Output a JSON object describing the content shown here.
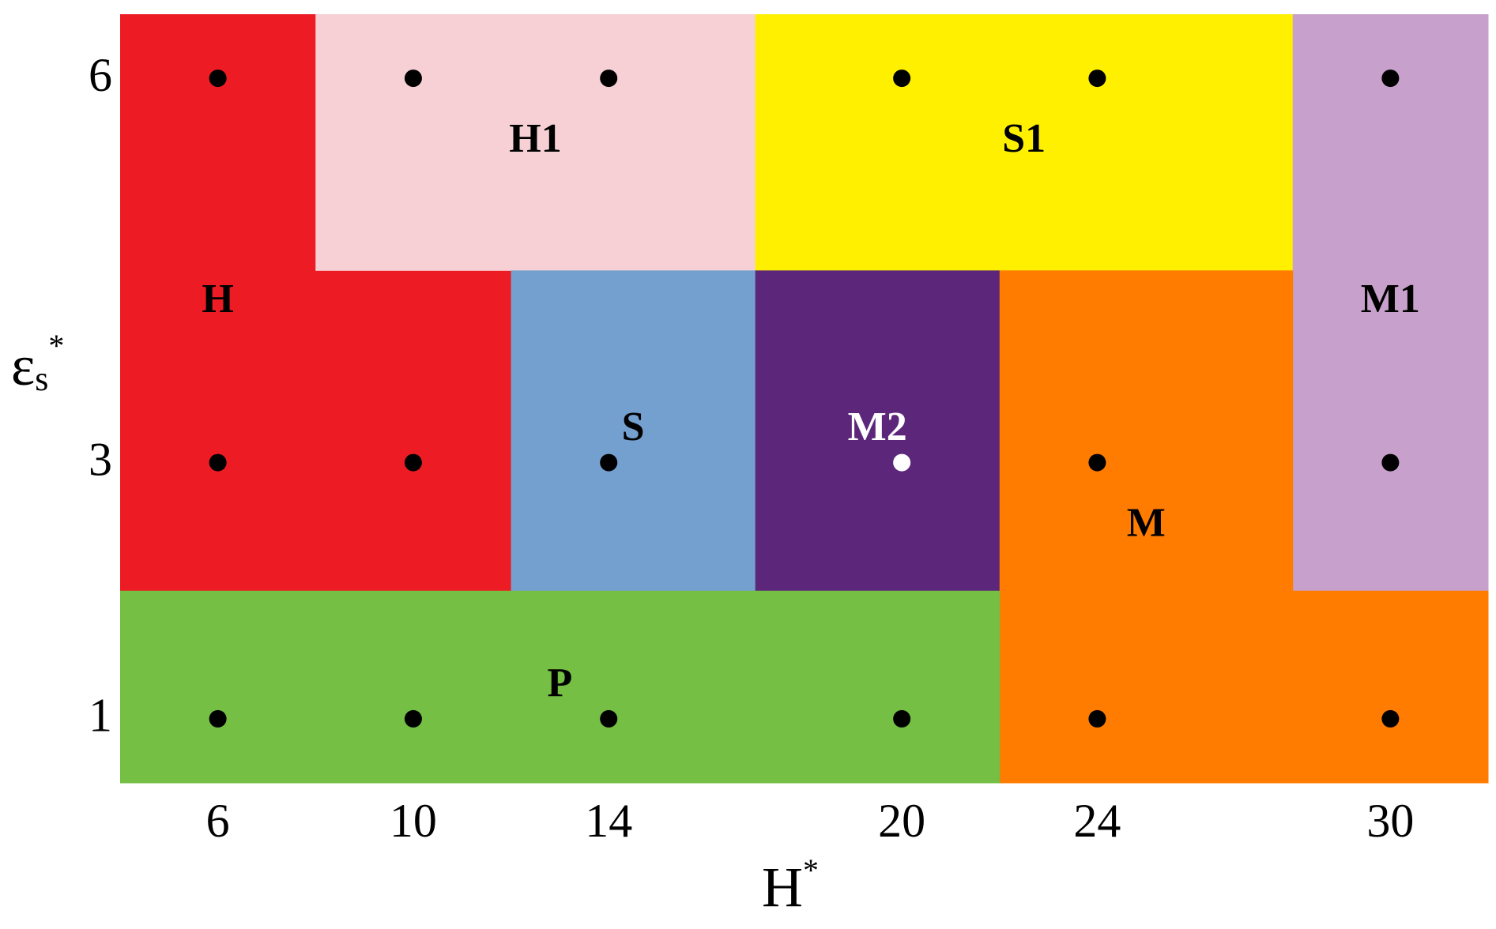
{
  "chart_data": {
    "type": "phase-map",
    "xlabel": {
      "base": "H",
      "sup": "*"
    },
    "ylabel": {
      "base": "ε",
      "sub": "s",
      "sup": "*"
    },
    "xlim": [
      4,
      32
    ],
    "ylim": [
      0.5,
      6.5
    ],
    "xticks": [
      6,
      10,
      14,
      20,
      24,
      30
    ],
    "yticks": [
      1,
      3,
      6
    ],
    "regions": [
      {
        "name": "H",
        "color": "#ed1c24",
        "label_color": "#000000",
        "rects": [
          [
            4,
            8,
            2,
            6.5
          ],
          [
            8,
            12,
            2,
            4.5
          ]
        ]
      },
      {
        "name": "H1",
        "color": "#f7d0d5",
        "label_color": "#000000",
        "rects": [
          [
            8,
            17,
            4.5,
            6.5
          ]
        ]
      },
      {
        "name": "S1",
        "color": "#fff000",
        "label_color": "#000000",
        "rects": [
          [
            17,
            28,
            4.5,
            6.5
          ]
        ]
      },
      {
        "name": "M1",
        "color": "#c7a0cb",
        "label_color": "#000000",
        "rects": [
          [
            28,
            32,
            2,
            6.5
          ]
        ]
      },
      {
        "name": "S",
        "color": "#74a0cf",
        "label_color": "#000000",
        "rects": [
          [
            12,
            17,
            2,
            4.5
          ]
        ]
      },
      {
        "name": "M2",
        "color": "#5c277b",
        "label_color": "#ffffff",
        "rects": [
          [
            17,
            22,
            2,
            4.5
          ]
        ]
      },
      {
        "name": "M",
        "color": "#ff7c00",
        "label_color": "#000000",
        "rects": [
          [
            22,
            28,
            0.5,
            4.5
          ],
          [
            28,
            32,
            0.5,
            2
          ]
        ]
      },
      {
        "name": "P",
        "color": "#74bf44",
        "label_color": "#000000",
        "rects": [
          [
            4,
            22,
            0.5,
            2
          ]
        ]
      }
    ],
    "points": {
      "x": [
        6,
        10,
        14,
        20,
        24,
        30,
        6,
        10,
        14,
        20,
        24,
        30,
        6,
        10,
        14,
        20,
        24,
        30
      ],
      "y": [
        6,
        6,
        6,
        6,
        6,
        6,
        3,
        3,
        3,
        3,
        3,
        3,
        1,
        1,
        1,
        1,
        1,
        1
      ],
      "colors": [
        "#000000",
        "#000000",
        "#000000",
        "#000000",
        "#000000",
        "#000000",
        "#000000",
        "#000000",
        "#000000",
        "#ffffff",
        "#000000",
        "#000000",
        "#000000",
        "#000000",
        "#000000",
        "#000000",
        "#000000",
        "#000000"
      ]
    }
  }
}
